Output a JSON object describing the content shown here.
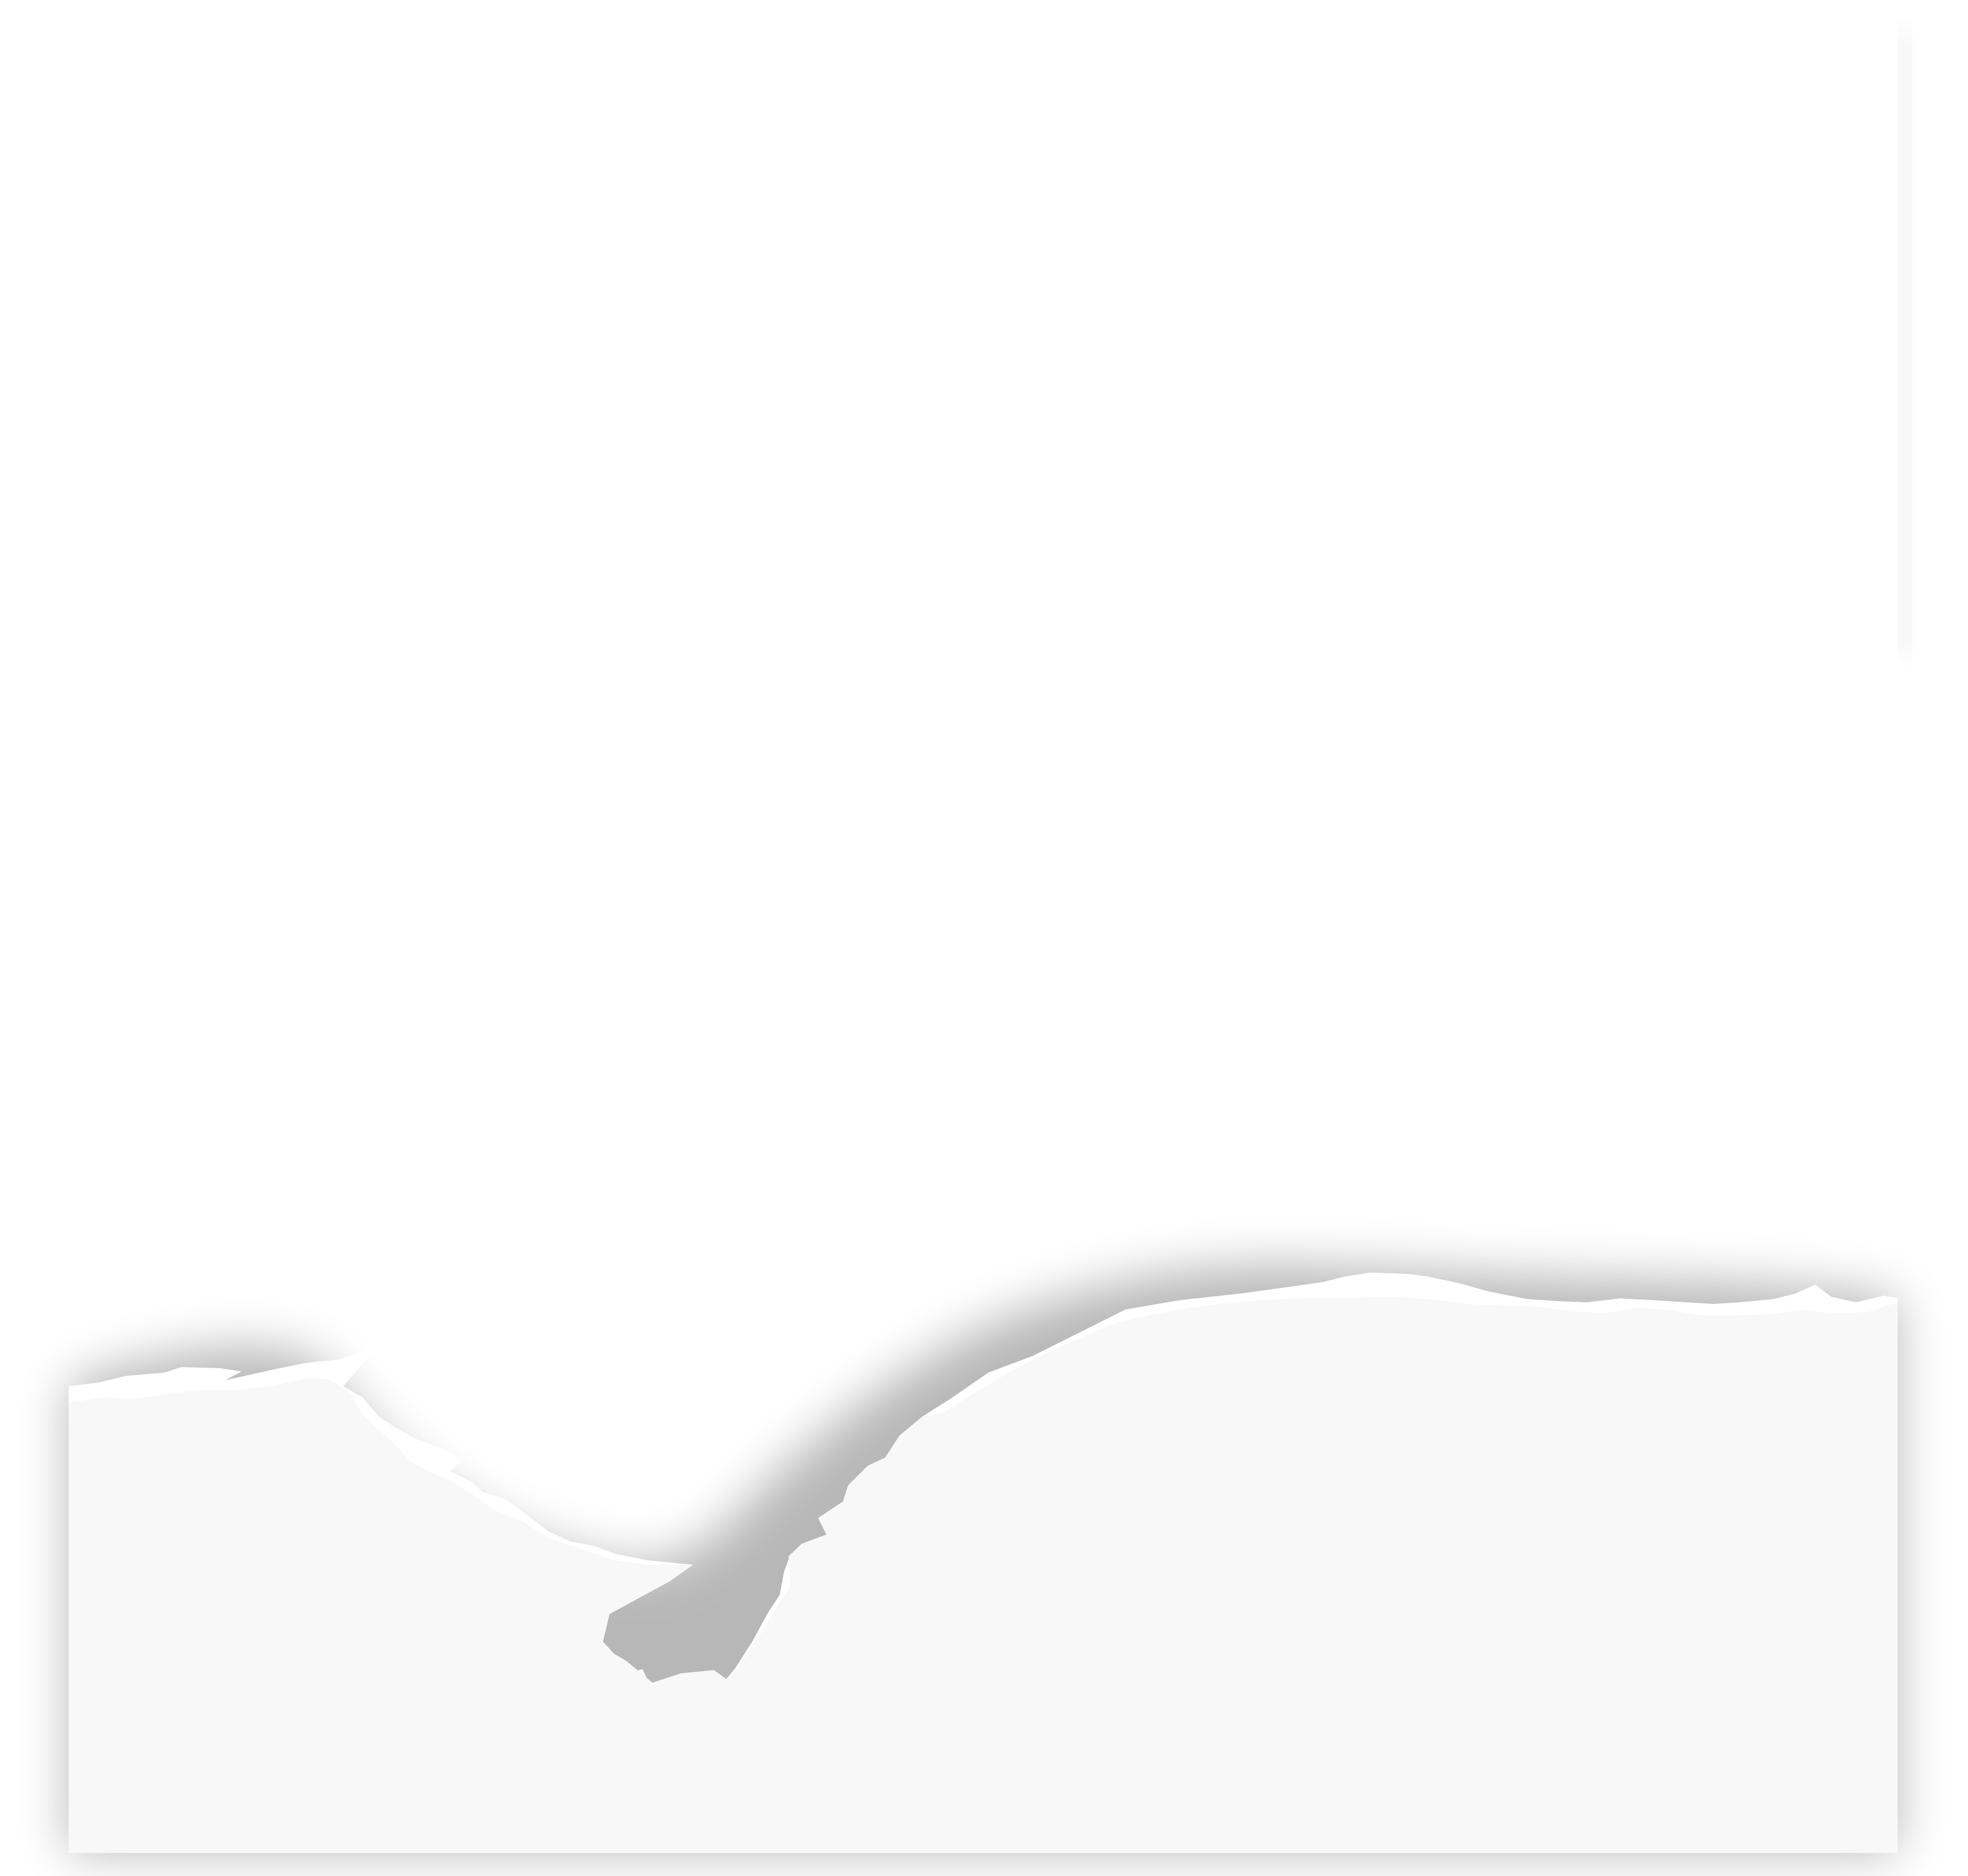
{
  "page": {
    "background_color": "#ffffff"
  },
  "torn_paper": {
    "color": "#f8f8f8",
    "edge_highlight_color": "#ffffff",
    "shadow_color": "#000000",
    "shadow_opacity": 0.28
  }
}
